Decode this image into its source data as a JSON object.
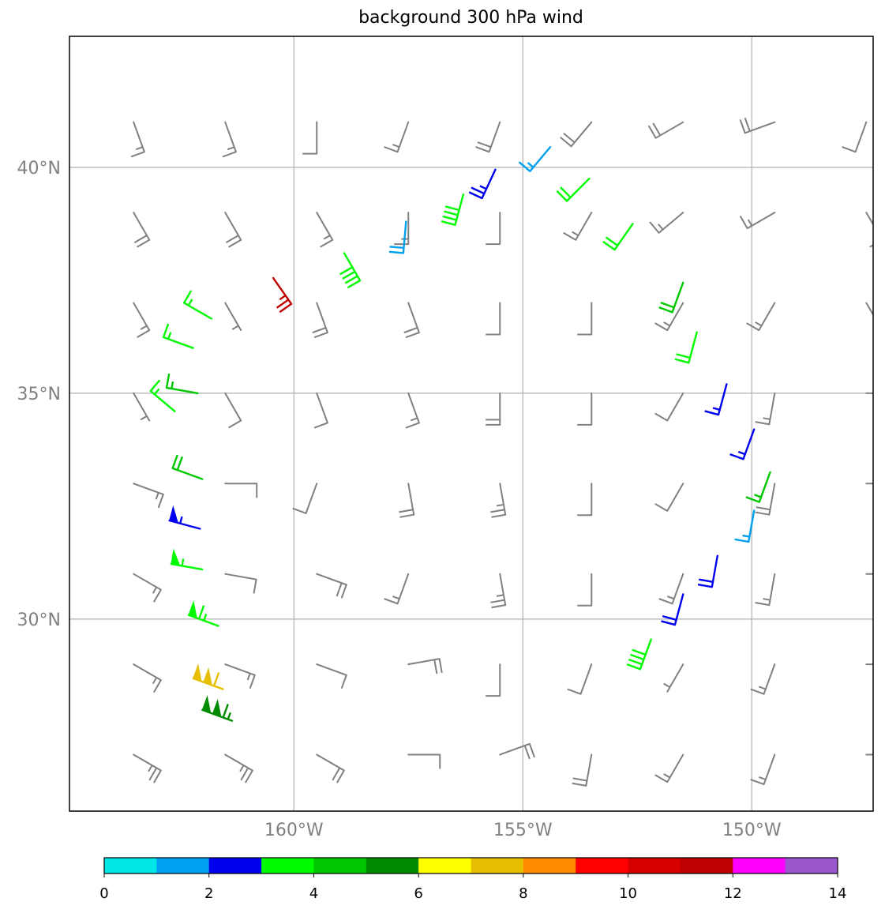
{
  "title": "background 300 hPa wind",
  "map": {
    "lon_range": [
      -164.9,
      -147.35
    ],
    "lat_range": [
      25.75,
      42.9
    ],
    "grid_lons": [
      -160,
      -155,
      -150
    ],
    "grid_lats": [
      30,
      35,
      40
    ],
    "lon_labels": [
      "160°W",
      "155°W",
      "150°W"
    ],
    "lat_labels": [
      "30°N",
      "35°N",
      "40°N"
    ]
  },
  "colorbar": {
    "min": 0,
    "max": 14,
    "ticks": [
      "0",
      "2",
      "4",
      "6",
      "8",
      "10",
      "12",
      "14"
    ],
    "colors": [
      "#00e5e5",
      "#00a0f0",
      "#0000f0",
      "#00fa00",
      "#00c800",
      "#008c00",
      "#ffff00",
      "#e5bf00",
      "#ff8c00",
      "#ff0000",
      "#d70000",
      "#bf0000",
      "#ff00ff",
      "#9955cc"
    ]
  },
  "background_color": "#808080",
  "chart_data": {
    "type": "wind-barbs",
    "title": "background 300 hPa wind",
    "background_barbs": {
      "lons": [
        -163.5,
        -161.5,
        -159.5,
        -157.5,
        -155.5,
        -153.5,
        -151.5,
        -149.5,
        -147.5
      ],
      "lats": [
        41.0,
        39.0,
        37.0,
        35.0,
        33.0,
        31.0,
        29.0,
        27.0
      ],
      "rows": [
        [
          {
            "dir": 160,
            "spd": 15
          },
          {
            "dir": 160,
            "spd": 15
          },
          {
            "dir": 180,
            "spd": 10
          },
          {
            "dir": 200,
            "spd": 15
          },
          {
            "dir": 200,
            "spd": 20
          },
          {
            "dir": 220,
            "spd": 20
          },
          {
            "dir": 240,
            "spd": 20
          },
          {
            "dir": 250,
            "spd": 20
          },
          {
            "dir": 200,
            "spd": 10
          }
        ],
        [
          {
            "dir": 150,
            "spd": 20
          },
          {
            "dir": 150,
            "spd": 20
          },
          {
            "dir": 150,
            "spd": 15
          },
          {
            "dir": 180,
            "spd": 15
          },
          {
            "dir": 180,
            "spd": 10
          },
          {
            "dir": 210,
            "spd": 15
          },
          {
            "dir": 230,
            "spd": 15
          },
          {
            "dir": 240,
            "spd": 15
          },
          {
            "dir": 150,
            "spd": 10
          }
        ],
        [
          {
            "dir": 150,
            "spd": 15
          },
          {
            "dir": 150,
            "spd": 5
          },
          {
            "dir": 160,
            "spd": 20
          },
          {
            "dir": 160,
            "spd": 20
          },
          {
            "dir": 180,
            "spd": 10
          },
          {
            "dir": 180,
            "spd": 10
          },
          {
            "dir": 210,
            "spd": 15
          },
          {
            "dir": 210,
            "spd": 15
          },
          {
            "dir": 150,
            "spd": 5
          }
        ],
        [
          {
            "dir": 150,
            "spd": 5
          },
          {
            "dir": 150,
            "spd": 10
          },
          {
            "dir": 160,
            "spd": 10
          },
          {
            "dir": 160,
            "spd": 15
          },
          {
            "dir": 180,
            "spd": 20
          },
          {
            "dir": 180,
            "spd": 10
          },
          {
            "dir": 210,
            "spd": 10
          },
          {
            "dir": 190,
            "spd": 15
          },
          {
            "dir": 90,
            "spd": 5
          }
        ],
        [
          {
            "dir": 110,
            "spd": 15
          },
          {
            "dir": 90,
            "spd": 10
          },
          {
            "dir": 200,
            "spd": 10
          },
          {
            "dir": 170,
            "spd": 20
          },
          {
            "dir": 170,
            "spd": 25
          },
          {
            "dir": 180,
            "spd": 10
          },
          {
            "dir": 210,
            "spd": 10
          },
          {
            "dir": 190,
            "spd": 20
          },
          {
            "dir": 90,
            "spd": 5
          }
        ],
        [
          {
            "dir": 120,
            "spd": 15
          },
          {
            "dir": 100,
            "spd": 10
          },
          {
            "dir": 110,
            "spd": 20
          },
          {
            "dir": 200,
            "spd": 15
          },
          {
            "dir": 170,
            "spd": 25
          },
          {
            "dir": 180,
            "spd": 10
          },
          {
            "dir": 200,
            "spd": 15
          },
          {
            "dir": 190,
            "spd": 15
          },
          {
            "dir": 90,
            "spd": 5
          }
        ],
        [
          {
            "dir": 120,
            "spd": 15
          },
          {
            "dir": 110,
            "spd": 15
          },
          {
            "dir": 110,
            "spd": 10
          },
          {
            "dir": 80,
            "spd": 20
          },
          {
            "dir": 180,
            "spd": 10
          },
          {
            "dir": 200,
            "spd": 10
          },
          {
            "dir": 210,
            "spd": 5
          },
          {
            "dir": 200,
            "spd": 15
          },
          {
            "dir": 90,
            "spd": 5
          }
        ],
        [
          {
            "dir": 120,
            "spd": 25
          },
          {
            "dir": 120,
            "spd": 25
          },
          {
            "dir": 120,
            "spd": 20
          },
          {
            "dir": 90,
            "spd": 10
          },
          {
            "dir": 70,
            "spd": 20
          },
          {
            "dir": 190,
            "spd": 20
          },
          {
            "dir": 210,
            "spd": 15
          },
          {
            "dir": 200,
            "spd": 15
          },
          {
            "dir": 90,
            "spd": 5
          }
        ]
      ]
    },
    "observation_barbs": [
      {
        "lon": -160.45,
        "lat": 37.55,
        "dir": 145,
        "spd": 25,
        "color": "#bf0000"
      },
      {
        "lon": -158.9,
        "lat": 38.1,
        "dir": 150,
        "spd": 40,
        "color": "#00fa00"
      },
      {
        "lon": -157.55,
        "lat": 38.8,
        "dir": 185,
        "spd": 20,
        "color": "#00a0f0"
      },
      {
        "lon": -156.3,
        "lat": 39.4,
        "dir": 195,
        "spd": 40,
        "color": "#00fa00"
      },
      {
        "lon": -155.6,
        "lat": 39.95,
        "dir": 205,
        "spd": 25,
        "color": "#0000f0"
      },
      {
        "lon": -154.4,
        "lat": 40.45,
        "dir": 220,
        "spd": 15,
        "color": "#00a0f0"
      },
      {
        "lon": -153.55,
        "lat": 39.75,
        "dir": 225,
        "spd": 20,
        "color": "#00fa00"
      },
      {
        "lon": -152.6,
        "lat": 38.75,
        "dir": 215,
        "spd": 20,
        "color": "#00fa00"
      },
      {
        "lon": -151.5,
        "lat": 37.45,
        "dir": 200,
        "spd": 20,
        "color": "#00c800"
      },
      {
        "lon": -151.2,
        "lat": 36.35,
        "dir": 195,
        "spd": 20,
        "color": "#00fa00"
      },
      {
        "lon": -150.55,
        "lat": 35.2,
        "dir": 195,
        "spd": 15,
        "color": "#0000f0"
      },
      {
        "lon": -149.95,
        "lat": 34.2,
        "dir": 200,
        "spd": 15,
        "color": "#0000f0"
      },
      {
        "lon": -149.6,
        "lat": 33.25,
        "dir": 200,
        "spd": 15,
        "color": "#00c800"
      },
      {
        "lon": -149.95,
        "lat": 32.4,
        "dir": 190,
        "spd": 15,
        "color": "#00a0f0"
      },
      {
        "lon": -150.75,
        "lat": 31.4,
        "dir": 190,
        "spd": 20,
        "color": "#0000f0"
      },
      {
        "lon": -151.5,
        "lat": 30.55,
        "dir": 195,
        "spd": 20,
        "color": "#0000f0"
      },
      {
        "lon": -152.2,
        "lat": 29.55,
        "dir": 200,
        "spd": 40,
        "color": "#00fa00"
      },
      {
        "lon": -161.8,
        "lat": 36.65,
        "dir": 300,
        "spd": 15,
        "color": "#00fa00"
      },
      {
        "lon": -162.2,
        "lat": 36.0,
        "dir": 290,
        "spd": 15,
        "color": "#00fa00"
      },
      {
        "lon": -162.1,
        "lat": 35.0,
        "dir": 280,
        "spd": 15,
        "color": "#00c800"
      },
      {
        "lon": -162.6,
        "lat": 34.6,
        "dir": 310,
        "spd": 15,
        "color": "#00fa00"
      },
      {
        "lon": -162.0,
        "lat": 33.1,
        "dir": 290,
        "spd": 20,
        "color": "#00c800"
      },
      {
        "lon": -162.05,
        "lat": 32.0,
        "dir": 285,
        "spd": 55,
        "color": "#0000f0"
      },
      {
        "lon": -162.0,
        "lat": 31.1,
        "dir": 280,
        "spd": 55,
        "color": "#00fa00"
      },
      {
        "lon": -161.65,
        "lat": 29.85,
        "dir": 290,
        "spd": 65,
        "color": "#00fa00"
      },
      {
        "lon": -161.55,
        "lat": 28.45,
        "dir": 290,
        "spd": 110,
        "color": "#e5bf00"
      },
      {
        "lon": -161.35,
        "lat": 27.75,
        "dir": 290,
        "spd": 115,
        "color": "#008c00"
      }
    ]
  }
}
